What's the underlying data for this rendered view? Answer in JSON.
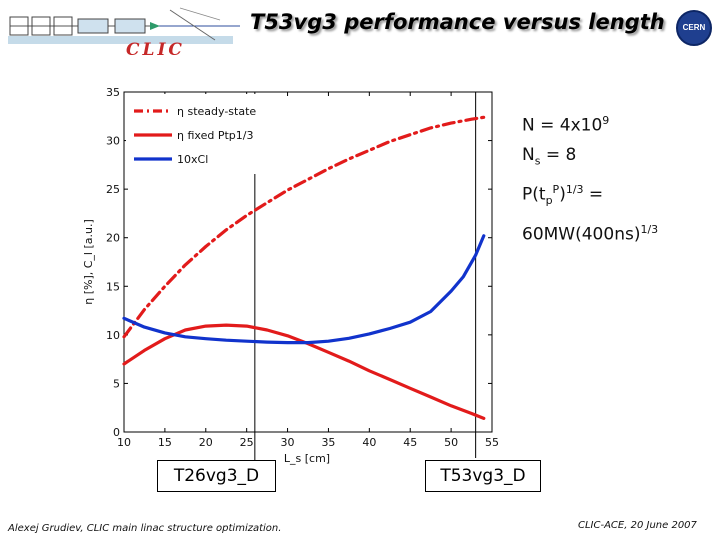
{
  "slide": {
    "title": "T53vg3 performance versus length",
    "logo_text": "CLIC",
    "lab_logo_text": "CERN",
    "footer_left": "Alexej Grudiev, CLIC main linac structure optimization.",
    "footer_right": "CLIC-ACE, 20 June 2007",
    "annotation": {
      "n_base": "N = 4x10",
      "n_exp": "9",
      "ns_label": "N",
      "ns_sub": "s",
      "ns_value": " = 8",
      "p_prefix": "P(t",
      "p_sub": "p",
      "p_sup": "P",
      "p_close": ")",
      "p_exp": "1/3",
      "p_eq": " =",
      "p_value": "60MW(400ns)",
      "p_value_exp": "1/3"
    },
    "left_box": "T26vg3_D",
    "right_box": "T53vg3_D"
  },
  "chart_data": {
    "type": "line",
    "title": "",
    "xlabel": "L_s [cm]",
    "ylabel": "η [%], C_l [a.u.]",
    "xlim": [
      10,
      55
    ],
    "ylim": [
      0,
      35
    ],
    "xticks": [
      "10",
      "15",
      "20",
      "25",
      "30",
      "35",
      "40",
      "45",
      "50",
      "55"
    ],
    "yticks": [
      "0",
      "5",
      "10",
      "15",
      "20",
      "25",
      "30",
      "35"
    ],
    "grid": false,
    "legend_position": "top-left",
    "markers": [
      26,
      53
    ],
    "series": [
      {
        "name": "η steady-state",
        "color": "#e21b1b",
        "dash": "dash-dot",
        "x": [
          10,
          12.5,
          15,
          17.5,
          20,
          22.5,
          25,
          27.5,
          30,
          32.5,
          35,
          37.5,
          40,
          42.5,
          45,
          47.5,
          50,
          52.5,
          54
        ],
        "y": [
          9.8,
          12.6,
          15.0,
          17.2,
          19.1,
          20.8,
          22.3,
          23.6,
          24.9,
          26.0,
          27.1,
          28.1,
          29.0,
          29.9,
          30.6,
          31.3,
          31.8,
          32.2,
          32.4
        ]
      },
      {
        "name": "η fixed Ptp1/3",
        "color": "#e21b1b",
        "dash": "solid",
        "x": [
          10,
          12.5,
          15,
          17.5,
          20,
          22.5,
          25,
          27.5,
          30,
          32.5,
          35,
          37.5,
          40,
          42.5,
          45,
          47.5,
          50,
          52.5,
          54
        ],
        "y": [
          7.0,
          8.4,
          9.6,
          10.5,
          10.9,
          11.0,
          10.9,
          10.5,
          9.9,
          9.1,
          8.2,
          7.3,
          6.3,
          5.4,
          4.5,
          3.6,
          2.7,
          1.9,
          1.4
        ]
      },
      {
        "name": "10xCl",
        "color": "#1133cc",
        "dash": "solid",
        "x": [
          10,
          12.5,
          15,
          17.5,
          20,
          22.5,
          25,
          27.5,
          30,
          32.5,
          35,
          37.5,
          40,
          42.5,
          45,
          47.5,
          50,
          51.5,
          53,
          54
        ],
        "y": [
          11.7,
          10.8,
          10.2,
          9.8,
          9.6,
          9.45,
          9.35,
          9.25,
          9.2,
          9.2,
          9.35,
          9.65,
          10.1,
          10.65,
          11.3,
          12.4,
          14.5,
          16.0,
          18.2,
          20.2
        ]
      }
    ]
  }
}
